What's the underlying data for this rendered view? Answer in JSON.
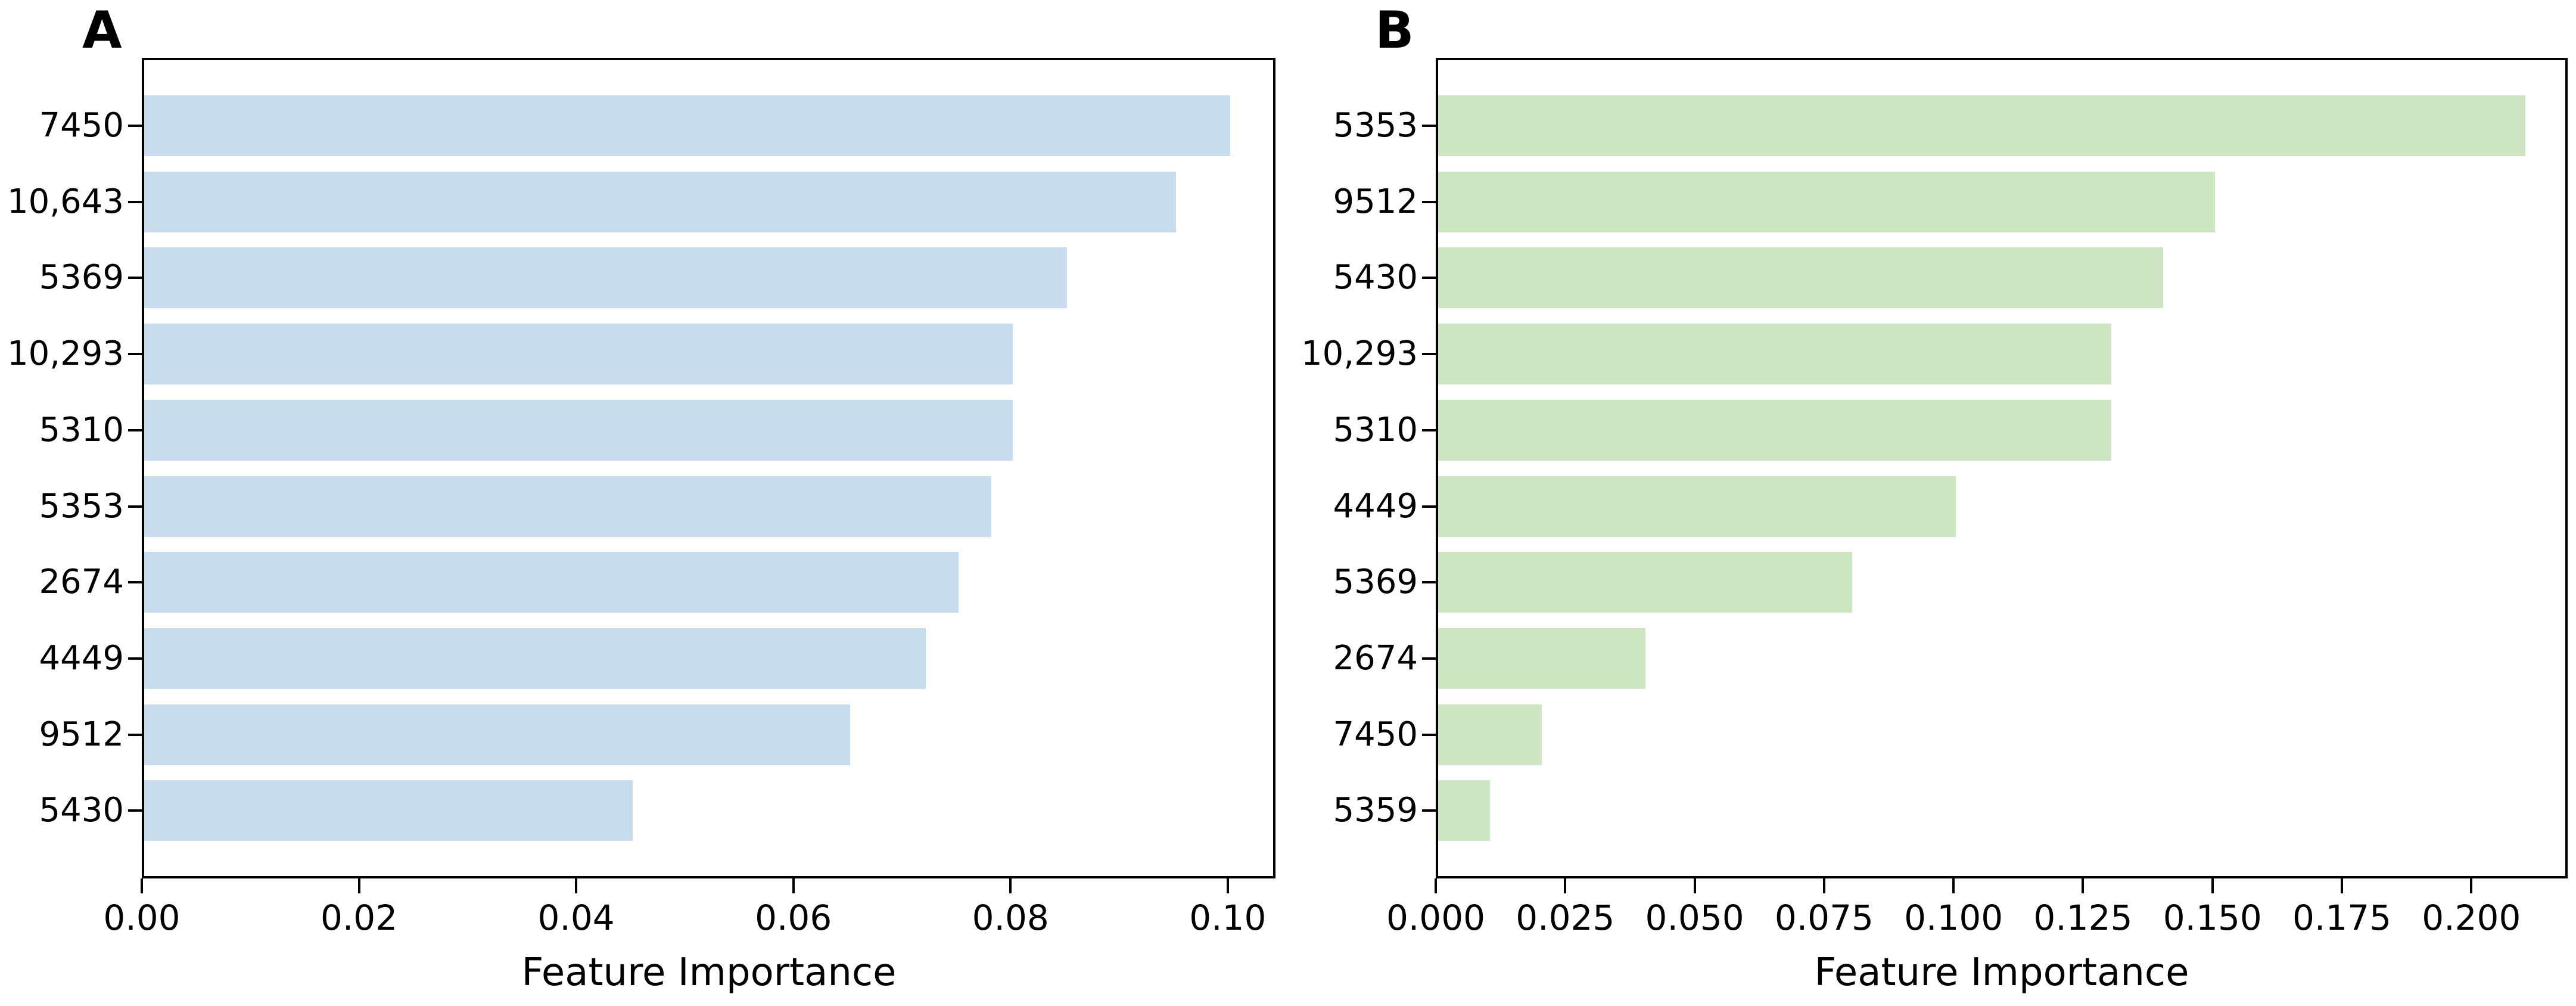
{
  "chart_data": [
    {
      "type": "bar",
      "orientation": "horizontal",
      "title": "A",
      "xlabel": "Feature Importance",
      "categories": [
        "7450",
        "10,643",
        "5369",
        "10,293",
        "5310",
        "5353",
        "2674",
        "4449",
        "9512",
        "5430"
      ],
      "values": [
        0.1,
        0.095,
        0.085,
        0.08,
        0.08,
        0.078,
        0.075,
        0.072,
        0.065,
        0.045
      ],
      "xlim": [
        0,
        0.1044
      ],
      "x_tick_values": [
        0.0,
        0.02,
        0.04,
        0.06,
        0.08,
        0.1
      ],
      "x_tick_labels": [
        "0.00",
        "0.02",
        "0.04",
        "0.06",
        "0.08",
        "0.10"
      ],
      "bar_color": "#c9dcee",
      "grid": false,
      "legend": null
    },
    {
      "type": "bar",
      "orientation": "horizontal",
      "title": "B",
      "xlabel": "Feature Importance",
      "categories": [
        "5353",
        "9512",
        "5430",
        "10,293",
        "5310",
        "4449",
        "5369",
        "2674",
        "7450",
        "5359"
      ],
      "values": [
        0.21,
        0.15,
        0.14,
        0.13,
        0.13,
        0.1,
        0.08,
        0.04,
        0.02,
        0.01
      ],
      "xlim": [
        0,
        0.2186
      ],
      "x_tick_values": [
        0.0,
        0.025,
        0.05,
        0.075,
        0.1,
        0.125,
        0.15,
        0.175,
        0.2
      ],
      "x_tick_labels": [
        "0.000",
        "0.025",
        "0.050",
        "0.075",
        "0.100",
        "0.125",
        "0.150",
        "0.175",
        "0.200"
      ],
      "bar_color": "#cde5c3",
      "grid": false,
      "legend": null
    }
  ],
  "colors": {
    "spine": "#000000",
    "background": "#ffffff",
    "text": "#000000"
  }
}
